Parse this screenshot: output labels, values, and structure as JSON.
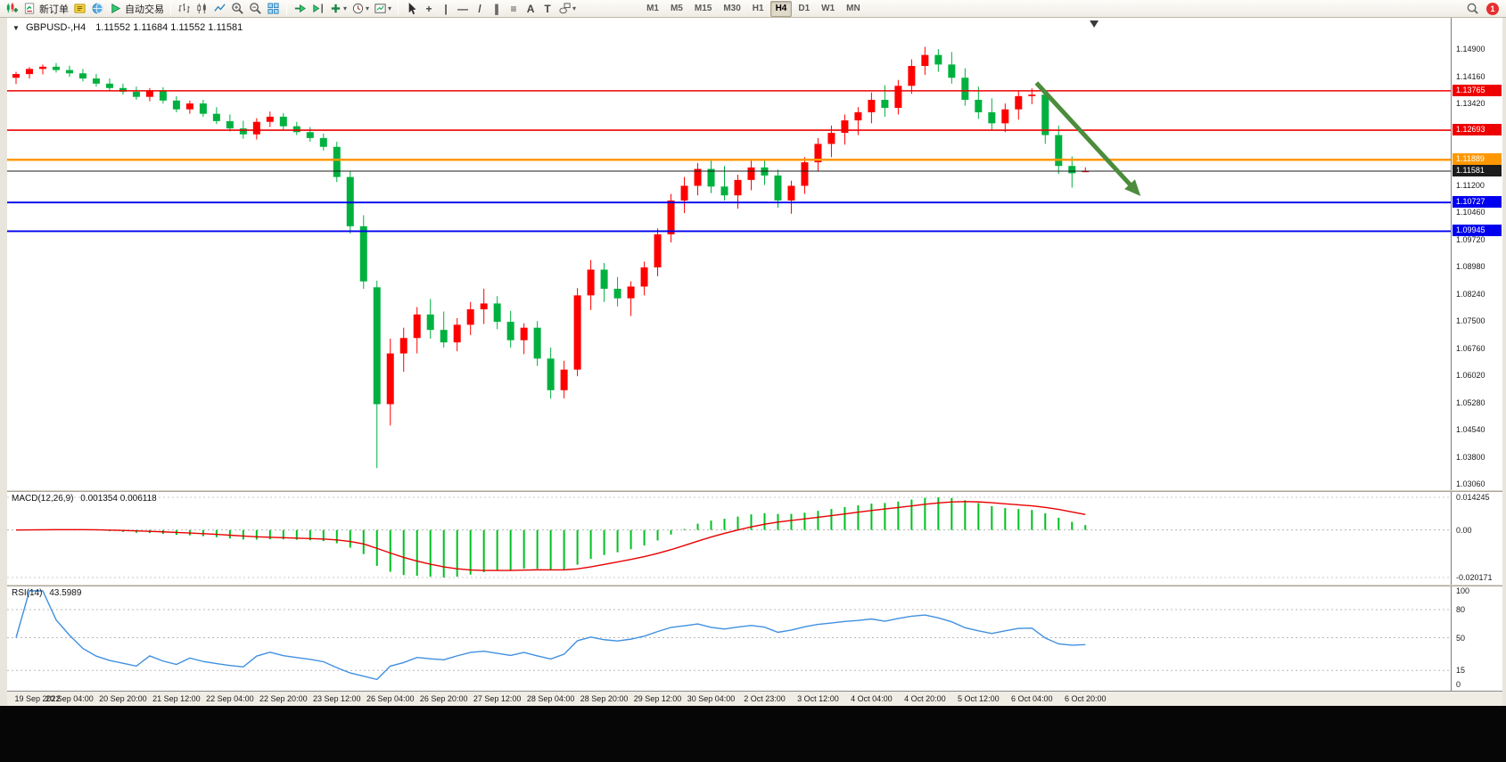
{
  "toolbar": {
    "new_order_label": "新订单",
    "autotrading_label": "自动交易",
    "timeframes": [
      "M1",
      "M5",
      "M15",
      "M30",
      "H1",
      "H4",
      "D1",
      "W1",
      "MN"
    ],
    "active_timeframe": "H4",
    "notification_count": "1"
  },
  "icons": {
    "one_click": "▼",
    "dropdown_caret": "▾",
    "crosshair": "+",
    "vertical_line": "|",
    "horizontal_line": "—",
    "trendline": "/",
    "channel": "∥",
    "fibonacci": "≡",
    "text": "A",
    "text_label": "T"
  },
  "chart_data": {
    "type": "candlestick",
    "symbol_title": "GBPUSD-,H4",
    "ohlc_text": "1.11552 1.11684 1.11552 1.11581",
    "up_color": "#ff0000",
    "down_color": "#00b140",
    "price_range": [
      1.029,
      1.1575
    ],
    "price_ticks": [
      1.149,
      1.1416,
      1.1342,
      1.1268,
      1.1194,
      1.112,
      1.1046,
      1.0972,
      1.0898,
      1.0824,
      1.075,
      1.0676,
      1.0602,
      1.0528,
      1.0454,
      1.038,
      1.0306
    ],
    "levels": [
      {
        "price": 1.13765,
        "label": "1.13765",
        "color": "#ee0000",
        "width": 1.6
      },
      {
        "price": 1.12693,
        "label": "1.12693",
        "color": "#ee0000",
        "width": 1.6
      },
      {
        "price": 1.11889,
        "label": "1.11889",
        "color": "#ff9800",
        "width": 2.4
      },
      {
        "price": 1.11581,
        "label": "1.11581",
        "color": "#1c1c1c",
        "width": 1
      },
      {
        "price": 1.10727,
        "label": "1.10727",
        "color": "#0000ee",
        "width": 1.8
      },
      {
        "price": 1.09945,
        "label": "1.09945",
        "color": "#0000ee",
        "width": 1.8
      }
    ],
    "shift_marker_frac": 0.753,
    "annotation_arrow": {
      "x1_frac": 0.713,
      "price1": 1.1398,
      "x2_frac": 0.781,
      "price2": 1.1108,
      "color": "#4c8c3c"
    },
    "time_labels": [
      "19 Sep 2022",
      "20 Sep 04:00",
      "20 Sep 20:00",
      "21 Sep 12:00",
      "22 Sep 04:00",
      "22 Sep 20:00",
      "23 Sep 12:00",
      "26 Sep 04:00",
      "26 Sep 20:00",
      "27 Sep 12:00",
      "28 Sep 04:00",
      "28 Sep 20:00",
      "29 Sep 12:00",
      "30 Sep 04:00",
      "2 Oct 23:00",
      "3 Oct 12:00",
      "4 Oct 04:00",
      "4 Oct 20:00",
      "5 Oct 12:00",
      "6 Oct 04:00",
      "6 Oct 20:00"
    ],
    "candles": [
      [
        1.1412,
        1.1428,
        1.1395,
        1.1422
      ],
      [
        1.1422,
        1.1441,
        1.141,
        1.1436
      ],
      [
        1.1436,
        1.1448,
        1.1421,
        1.1442
      ],
      [
        1.1442,
        1.1452,
        1.1426,
        1.1433
      ],
      [
        1.1433,
        1.1445,
        1.1415,
        1.1424
      ],
      [
        1.1424,
        1.1436,
        1.1402,
        1.141
      ],
      [
        1.141,
        1.1422,
        1.1388,
        1.1396
      ],
      [
        1.1396,
        1.141,
        1.1376,
        1.1384
      ],
      [
        1.1384,
        1.1396,
        1.1366,
        1.1374
      ],
      [
        1.1374,
        1.1388,
        1.1352,
        1.136
      ],
      [
        1.136,
        1.1384,
        1.1348,
        1.1376
      ],
      [
        1.1376,
        1.1386,
        1.1342,
        1.135
      ],
      [
        1.135,
        1.1362,
        1.1318,
        1.1326
      ],
      [
        1.1326,
        1.135,
        1.1314,
        1.1342
      ],
      [
        1.1342,
        1.1352,
        1.1306,
        1.1314
      ],
      [
        1.1314,
        1.1332,
        1.1286,
        1.1294
      ],
      [
        1.1294,
        1.1312,
        1.1266,
        1.1274
      ],
      [
        1.1274,
        1.1295,
        1.1246,
        1.1258
      ],
      [
        1.1258,
        1.1302,
        1.1244,
        1.1292
      ],
      [
        1.1292,
        1.132,
        1.1278,
        1.1306
      ],
      [
        1.1306,
        1.1316,
        1.127,
        1.128
      ],
      [
        1.128,
        1.1292,
        1.1256,
        1.1264
      ],
      [
        1.1264,
        1.1278,
        1.1238,
        1.1248
      ],
      [
        1.1248,
        1.126,
        1.1214,
        1.1224
      ],
      [
        1.1224,
        1.1238,
        1.1128,
        1.1142
      ],
      [
        1.1142,
        1.1158,
        1.0988,
        1.1008
      ],
      [
        1.1008,
        1.1038,
        1.0838,
        1.0858
      ],
      [
        1.0842,
        1.086,
        1.035,
        1.0524
      ],
      [
        1.0524,
        1.0702,
        1.0466,
        1.0662
      ],
      [
        1.0662,
        1.0732,
        1.0612,
        1.0704
      ],
      [
        1.0704,
        1.0788,
        1.0662,
        1.0768
      ],
      [
        1.0768,
        1.081,
        1.0702,
        1.0726
      ],
      [
        1.0726,
        1.0776,
        1.0678,
        1.0692
      ],
      [
        1.0692,
        1.0758,
        1.0668,
        1.074
      ],
      [
        1.074,
        1.0802,
        1.0712,
        1.0782
      ],
      [
        1.0782,
        1.0838,
        1.0742,
        1.0798
      ],
      [
        1.0798,
        1.0818,
        1.0728,
        1.0748
      ],
      [
        1.0748,
        1.0778,
        1.0678,
        1.0698
      ],
      [
        1.0698,
        1.0744,
        1.066,
        1.0732
      ],
      [
        1.0732,
        1.075,
        1.0628,
        1.0648
      ],
      [
        1.0648,
        1.0678,
        1.0539,
        1.0562
      ],
      [
        1.0562,
        1.0642,
        1.054,
        1.0618
      ],
      [
        1.0618,
        1.084,
        1.06,
        1.082
      ],
      [
        1.082,
        1.0916,
        1.078,
        1.089
      ],
      [
        1.089,
        1.0908,
        1.0802,
        1.0838
      ],
      [
        1.0838,
        1.087,
        1.079,
        1.0812
      ],
      [
        1.0812,
        1.0858,
        1.0764,
        1.0844
      ],
      [
        1.0844,
        1.0912,
        1.082,
        1.0896
      ],
      [
        1.0896,
        1.1002,
        1.0872,
        1.0986
      ],
      [
        1.0986,
        1.1096,
        1.0964,
        1.1078
      ],
      [
        1.1078,
        1.1142,
        1.1044,
        1.1118
      ],
      [
        1.1118,
        1.118,
        1.1092,
        1.1164
      ],
      [
        1.1164,
        1.1192,
        1.1098,
        1.1116
      ],
      [
        1.1116,
        1.1172,
        1.1078,
        1.1092
      ],
      [
        1.1092,
        1.1148,
        1.1056,
        1.1134
      ],
      [
        1.1134,
        1.1186,
        1.1106,
        1.1168
      ],
      [
        1.1168,
        1.119,
        1.112,
        1.1146
      ],
      [
        1.1146,
        1.1162,
        1.1058,
        1.1078
      ],
      [
        1.1078,
        1.1132,
        1.1042,
        1.1118
      ],
      [
        1.1118,
        1.1196,
        1.1096,
        1.1182
      ],
      [
        1.1182,
        1.1248,
        1.1158,
        1.1232
      ],
      [
        1.1232,
        1.1282,
        1.1196,
        1.1262
      ],
      [
        1.1262,
        1.1312,
        1.123,
        1.1296
      ],
      [
        1.1296,
        1.1332,
        1.1256,
        1.1318
      ],
      [
        1.1318,
        1.1372,
        1.1288,
        1.1352
      ],
      [
        1.1352,
        1.1392,
        1.1306,
        1.133
      ],
      [
        1.133,
        1.1406,
        1.1312,
        1.139
      ],
      [
        1.139,
        1.1462,
        1.1368,
        1.1444
      ],
      [
        1.1444,
        1.1496,
        1.142,
        1.1474
      ],
      [
        1.1474,
        1.149,
        1.1428,
        1.1448
      ],
      [
        1.1448,
        1.1482,
        1.1396,
        1.1412
      ],
      [
        1.1412,
        1.1438,
        1.1336,
        1.1352
      ],
      [
        1.1352,
        1.1388,
        1.13,
        1.1318
      ],
      [
        1.1318,
        1.1356,
        1.1268,
        1.1288
      ],
      [
        1.1288,
        1.1342,
        1.1264,
        1.1326
      ],
      [
        1.1326,
        1.1376,
        1.1298,
        1.1362
      ],
      [
        1.1362,
        1.1383,
        1.134,
        1.1366
      ],
      [
        1.1366,
        1.1374,
        1.1232,
        1.1256
      ],
      [
        1.1256,
        1.1282,
        1.115,
        1.1172
      ],
      [
        1.1172,
        1.1198,
        1.1113,
        1.1152
      ],
      [
        1.11552,
        1.11684,
        1.11552,
        1.11581
      ]
    ],
    "macd": {
      "title": "MACD(12,26,9)",
      "values_text": "0.001354 0.006118",
      "params": [
        12,
        26,
        9
      ],
      "scale_labels": [
        "0.014245",
        "0.00",
        "-0.020171"
      ],
      "histogram_color": "#00c020",
      "signal_color": "#e80000"
    },
    "rsi": {
      "title": "RSI(14)",
      "value_text": "43.5989",
      "period": 14,
      "levels": [
        80,
        50,
        15
      ],
      "scale_values": [
        100,
        80,
        50,
        15,
        0
      ],
      "scale_labels": [
        "100",
        "80",
        "50",
        "15",
        "0"
      ],
      "line_color": "#4090e0"
    }
  }
}
